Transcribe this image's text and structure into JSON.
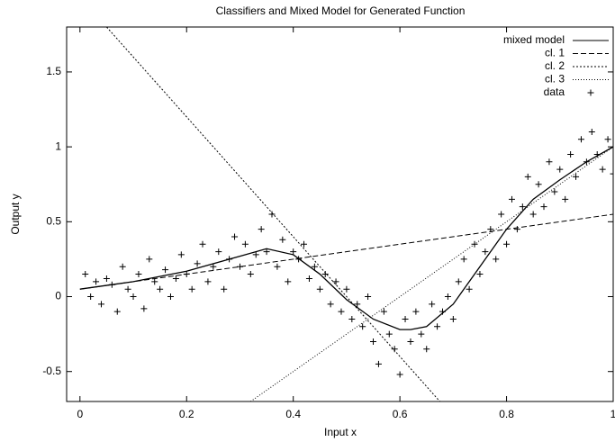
{
  "chart_data": {
    "type": "line",
    "title": "Classifiers and Mixed Model for Generated Function",
    "x_label": "Input x",
    "y_label": "Output y",
    "xlim": [
      -0.025,
      1.0
    ],
    "ylim": [
      -0.7,
      1.8
    ],
    "xticks": [
      0,
      0.2,
      0.4,
      0.6,
      0.8,
      1
    ],
    "yticks": [
      -0.5,
      0,
      0.5,
      1,
      1.5
    ],
    "legend": "upper right",
    "grid": false,
    "series": [
      {
        "name": "mixed model",
        "color": "#000000",
        "dash": "none",
        "x": [
          0,
          0.1,
          0.2,
          0.3,
          0.35,
          0.4,
          0.45,
          0.5,
          0.55,
          0.6,
          0.62,
          0.65,
          0.7,
          0.75,
          0.8,
          0.85,
          0.9,
          0.95,
          1
        ],
        "values": [
          0.05,
          0.1,
          0.17,
          0.27,
          0.32,
          0.28,
          0.15,
          -0.02,
          -0.15,
          -0.22,
          -0.22,
          -0.2,
          -0.05,
          0.2,
          0.45,
          0.65,
          0.78,
          0.9,
          1.0
        ]
      },
      {
        "name": "cl. 1",
        "color": "#000000",
        "dash": "6,3",
        "x": [
          0,
          1
        ],
        "values": [
          0.05,
          0.55
        ]
      },
      {
        "name": "cl. 2",
        "color": "#000000",
        "dash": "2,2",
        "x": [
          0.05,
          0.675
        ],
        "values": [
          1.8,
          -0.7
        ]
      },
      {
        "name": "cl. 3",
        "color": "#000000",
        "dash": "1,2",
        "x": [
          0.32,
          1
        ],
        "values": [
          -0.7,
          1.0
        ]
      },
      {
        "name": "data",
        "color": "#000000",
        "marker": "plus",
        "x": [
          0.01,
          0.02,
          0.03,
          0.04,
          0.05,
          0.06,
          0.07,
          0.08,
          0.09,
          0.1,
          0.11,
          0.12,
          0.13,
          0.14,
          0.15,
          0.16,
          0.17,
          0.18,
          0.19,
          0.2,
          0.21,
          0.22,
          0.23,
          0.24,
          0.25,
          0.26,
          0.27,
          0.28,
          0.29,
          0.3,
          0.31,
          0.32,
          0.33,
          0.34,
          0.35,
          0.36,
          0.37,
          0.38,
          0.39,
          0.4,
          0.41,
          0.42,
          0.43,
          0.44,
          0.45,
          0.46,
          0.47,
          0.48,
          0.49,
          0.5,
          0.51,
          0.52,
          0.53,
          0.54,
          0.55,
          0.56,
          0.57,
          0.58,
          0.59,
          0.6,
          0.61,
          0.62,
          0.63,
          0.64,
          0.65,
          0.66,
          0.67,
          0.68,
          0.69,
          0.7,
          0.71,
          0.72,
          0.73,
          0.74,
          0.75,
          0.76,
          0.77,
          0.78,
          0.79,
          0.8,
          0.81,
          0.82,
          0.83,
          0.84,
          0.85,
          0.86,
          0.87,
          0.88,
          0.89,
          0.9,
          0.91,
          0.92,
          0.93,
          0.94,
          0.95,
          0.96,
          0.97,
          0.98,
          0.99,
          1.0
        ],
        "values": [
          0.15,
          0.0,
          0.1,
          -0.05,
          0.12,
          0.08,
          -0.1,
          0.2,
          0.05,
          0.0,
          0.15,
          -0.08,
          0.25,
          0.1,
          0.05,
          0.18,
          0.0,
          0.12,
          0.28,
          0.15,
          0.05,
          0.22,
          0.35,
          0.1,
          0.2,
          0.3,
          0.05,
          0.25,
          0.4,
          0.2,
          0.35,
          0.15,
          0.28,
          0.45,
          0.3,
          0.55,
          0.2,
          0.38,
          0.1,
          0.3,
          0.25,
          0.35,
          0.12,
          0.2,
          0.05,
          0.15,
          -0.05,
          0.1,
          -0.1,
          0.05,
          -0.15,
          -0.05,
          -0.2,
          0.0,
          -0.3,
          -0.45,
          -0.1,
          -0.25,
          -0.35,
          -0.52,
          -0.15,
          -0.3,
          -0.1,
          -0.25,
          -0.35,
          -0.05,
          -0.2,
          -0.1,
          0.0,
          -0.15,
          0.1,
          0.25,
          0.05,
          0.35,
          0.15,
          0.3,
          0.45,
          0.25,
          0.55,
          0.35,
          0.65,
          0.45,
          0.6,
          0.8,
          0.55,
          0.75,
          0.6,
          0.9,
          0.7,
          0.85,
          0.65,
          0.95,
          0.8,
          1.05,
          0.9,
          1.1,
          0.95,
          0.85,
          1.05,
          0.82
        ]
      }
    ]
  }
}
